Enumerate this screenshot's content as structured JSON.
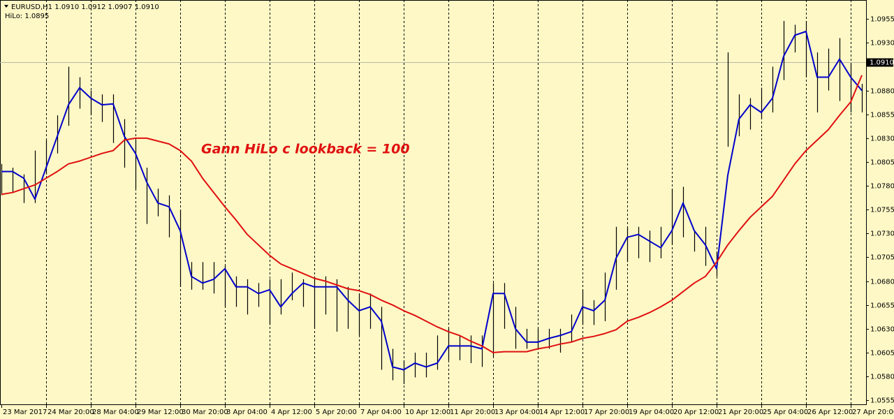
{
  "chart_data": {
    "type": "ohlc",
    "header": [
      "EURUSD,H1 1.0910 1.0912 1.0907 1.0910",
      "HiLo: 1.0895"
    ],
    "annotation": "Gann HiLo c lookback = 100",
    "background": "#fdf8c6",
    "categories": [
      "23 Mar 2017",
      null,
      null,
      null,
      "24 Mar 20:00",
      null,
      null,
      null,
      "28 Mar 04:00",
      null,
      null,
      null,
      "29 Mar 12:00",
      null,
      null,
      null,
      "30 Mar 20:00",
      null,
      null,
      null,
      "3 Apr 04:00",
      null,
      null,
      null,
      "4 Apr 12:00",
      null,
      null,
      null,
      "5 Apr 20:00",
      null,
      null,
      null,
      "7 Apr 04:00",
      null,
      null,
      null,
      "10 Apr 12:00",
      null,
      null,
      null,
      "11 Apr 20:00",
      null,
      null,
      null,
      "13 Apr 04:00",
      null,
      null,
      null,
      "14 Apr 12:00",
      null,
      null,
      null,
      "17 Apr 20:00",
      null,
      null,
      null,
      "19 Apr 04:00",
      null,
      null,
      null,
      "20 Apr 12:00",
      null,
      null,
      null,
      "21 Apr 20:00",
      null,
      null,
      null,
      "25 Apr 04:00",
      null,
      null,
      null,
      "26 Apr 12:00",
      null,
      null,
      null,
      "27 Apr 20:00",
      null
    ],
    "bars": {
      "color": "#000000",
      "high": [
        1.0803,
        1.0799,
        1.0792,
        1.0817,
        1.0828,
        1.0854,
        1.0905,
        1.0894,
        1.088,
        1.0876,
        1.0876,
        1.085,
        1.0828,
        1.0799,
        1.0777,
        1.077,
        1.0755,
        1.07,
        1.07,
        1.07,
        1.0696,
        1.0685,
        1.0682,
        1.0678,
        1.0682,
        1.0682,
        1.0689,
        1.0682,
        1.0685,
        1.0685,
        1.0682,
        1.0674,
        1.0667,
        1.0667,
        1.0653,
        1.0609,
        1.0597,
        1.0605,
        1.0605,
        1.0623,
        1.063,
        1.0623,
        1.0623,
        1.0623,
        1.0678,
        1.0678,
        1.0653,
        1.063,
        1.063,
        1.063,
        1.063,
        1.0645,
        1.0671,
        1.066,
        1.0689,
        1.0737,
        1.0737,
        1.0737,
        1.0733,
        1.0737,
        1.0777,
        1.0779,
        1.0733,
        1.0737,
        1.0711,
        1.092,
        1.0876,
        1.0872,
        1.0883,
        1.0905,
        1.0953,
        1.0949,
        1.0953,
        1.092,
        1.0924,
        1.0935,
        1.0909,
        1.0887
      ],
      "low": [
        1.077,
        1.0773,
        1.0762,
        1.0762,
        1.0792,
        1.0814,
        1.0843,
        1.0861,
        1.0854,
        1.0847,
        1.0825,
        1.0799,
        1.0777,
        1.074,
        1.0748,
        1.0726,
        1.0674,
        1.0671,
        1.0671,
        1.0667,
        1.0653,
        1.0653,
        1.0645,
        1.0653,
        1.0634,
        1.0645,
        1.066,
        1.0653,
        1.063,
        1.0645,
        1.0627,
        1.063,
        1.0623,
        1.063,
        1.0587,
        1.0576,
        1.0572,
        1.0579,
        1.0579,
        1.0587,
        1.0597,
        1.0597,
        1.0594,
        1.059,
        1.0601,
        1.063,
        1.0609,
        1.0609,
        1.0609,
        1.0609,
        1.0605,
        1.0616,
        1.0634,
        1.0634,
        1.0638,
        1.0671,
        1.07,
        1.0704,
        1.07,
        1.0704,
        1.0718,
        1.0726,
        1.0711,
        1.0696,
        1.0685,
        1.0821,
        1.0832,
        1.0839,
        1.085,
        1.0857,
        1.0891,
        1.092,
        1.0894,
        1.0857,
        1.088,
        1.0869,
        1.0857,
        1.0857
      ]
    },
    "series": [
      {
        "color": "#0000cc",
        "values": [
          1.0795,
          1.0795,
          1.0788,
          1.0766,
          1.0799,
          1.0832,
          1.0865,
          1.0883,
          1.0872,
          1.0865,
          1.0866,
          1.0832,
          1.0814,
          1.0784,
          1.0762,
          1.0758,
          1.0733,
          1.0685,
          1.0678,
          1.0682,
          1.0693,
          1.0674,
          1.0674,
          1.0667,
          1.0671,
          1.0653,
          1.0667,
          1.0678,
          1.0674,
          1.0674,
          1.0674,
          1.066,
          1.0649,
          1.0653,
          1.0638,
          1.059,
          1.0587,
          1.0594,
          1.059,
          1.0594,
          1.0612,
          1.0612,
          1.0612,
          1.0609,
          1.0667,
          1.0667,
          1.063,
          1.0616,
          1.0616,
          1.062,
          1.0623,
          1.0627,
          1.0653,
          1.0649,
          1.066,
          1.0704,
          1.0726,
          1.0729,
          1.0722,
          1.0715,
          1.0733,
          1.0762,
          1.0733,
          1.0718,
          1.0693,
          1.0791,
          1.085,
          1.0865,
          1.0857,
          1.0872,
          1.0916,
          1.0938,
          1.0942,
          1.0894,
          1.0894,
          1.0913,
          1.0894,
          1.088
        ]
      },
      {
        "color": "#e01010",
        "values": [
          1.0771,
          1.0773,
          1.0777,
          1.0781,
          1.0788,
          1.0795,
          1.0803,
          1.0806,
          1.081,
          1.0814,
          1.0817,
          1.0828,
          1.083,
          1.083,
          1.0827,
          1.0824,
          1.0817,
          1.0806,
          1.0788,
          1.0773,
          1.0758,
          1.0744,
          1.0729,
          1.0718,
          1.0707,
          1.0698,
          1.0693,
          1.0688,
          1.0683,
          1.068,
          1.0676,
          1.0672,
          1.067,
          1.0666,
          1.066,
          1.0655,
          1.0649,
          1.0644,
          1.0638,
          1.0632,
          1.0627,
          1.0623,
          1.0617,
          1.0612,
          1.0605,
          1.0606,
          1.0606,
          1.0606,
          1.0609,
          1.0611,
          1.0614,
          1.0616,
          1.062,
          1.0622,
          1.0625,
          1.0629,
          1.0638,
          1.0642,
          1.0647,
          1.0653,
          1.066,
          1.0669,
          1.0678,
          1.0685,
          1.07,
          1.0718,
          1.0733,
          1.0747,
          1.0758,
          1.0769,
          1.0786,
          1.0803,
          1.0817,
          1.0828,
          1.0839,
          1.0854,
          1.0868,
          1.0896
        ]
      }
    ],
    "last_price": {
      "value": 1.091,
      "label": "1.0910"
    },
    "ylim": [
      1.055,
      1.0975
    ],
    "yticks": [
      1.0955,
      {
        "value": 1.093,
        "label": "1.0930"
      },
      {
        "value": 1.088,
        "label": "1.0880"
      },
      1.0855,
      {
        "value": 1.083,
        "label": "1.0830"
      },
      1.0805,
      {
        "value": 1.078,
        "label": "1.0780"
      },
      1.0755,
      {
        "value": 1.073,
        "label": "1.0730"
      },
      1.0705,
      {
        "value": 1.068,
        "label": "1.0680"
      },
      1.0655,
      {
        "value": 1.063,
        "label": "1.0630"
      },
      1.0605,
      {
        "value": 1.058,
        "label": "1.0580"
      },
      1.0555
    ],
    "grid": true
  }
}
